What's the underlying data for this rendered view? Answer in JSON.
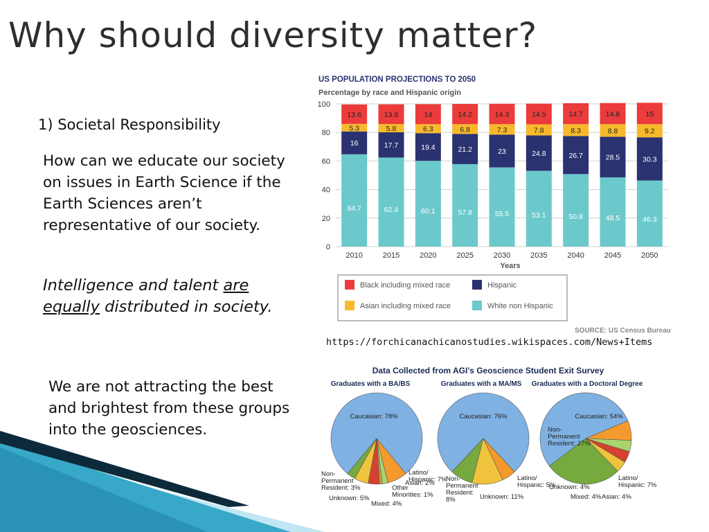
{
  "slide": {
    "title": "Why should diversity matter?",
    "section_heading": "1) Societal Responsibility",
    "question": "How can we educate our society on issues in Earth Science if the Earth Sciences aren’t representative of our society.",
    "emphasis_part1": "Intelligence and talent ",
    "emphasis_underline1": "are",
    "emphasis_underline2": "equally",
    "emphasis_part2": " distributed in society.",
    "attract_text": "We are not attracting the best and brightest from these groups into the geosciences.",
    "source_url": "https://forchicanachicanostudies.wikispaces.com/News+Items"
  },
  "chart_data": [
    {
      "type": "bar",
      "stacked": true,
      "title": "US POPULATION PROJECTIONS TO 2050",
      "subtitle": "Percentage by race and Hispanic origin",
      "xlabel": "Years",
      "ylabel": "",
      "ylim": [
        0,
        100
      ],
      "yticks": [
        0,
        20,
        40,
        60,
        80,
        100
      ],
      "grid": true,
      "categories": [
        "2010",
        "2015",
        "2020",
        "2025",
        "2030",
        "2035",
        "2040",
        "2045",
        "2050"
      ],
      "series": [
        {
          "name": "White non Hispanic",
          "color": "#6cc9cb",
          "values": [
            64.7,
            62.4,
            60.1,
            57.8,
            55.5,
            53.1,
            50.8,
            48.5,
            46.3
          ]
        },
        {
          "name": "Hispanic",
          "color": "#2b3270",
          "values": [
            16.0,
            17.7,
            19.4,
            21.2,
            23.0,
            24.8,
            26.7,
            28.5,
            30.3
          ]
        },
        {
          "name": "Asian including mixed race",
          "color": "#f7b92b",
          "values": [
            5.3,
            5.8,
            6.3,
            6.8,
            7.3,
            7.8,
            8.3,
            8.8,
            9.2
          ]
        },
        {
          "name": "Black including mixed race",
          "color": "#ec3b3b",
          "values": [
            13.6,
            13.8,
            14,
            14.2,
            14.3,
            14.5,
            14.7,
            14.8,
            15
          ]
        }
      ],
      "legend_order": [
        "Black including mixed race",
        "Hispanic",
        "Asian including mixed race",
        "White non Hispanic"
      ],
      "legend_position": "bottom",
      "source": "SOURCE: US Census Bureau"
    },
    {
      "type": "pie",
      "title": "Data Collected from AGI’s Geoscience Student Exit Survey",
      "pies": [
        {
          "title": "Graduates with a BA/BS",
          "slices": [
            {
              "name": "Caucasian",
              "value": 78,
              "color": "#7fb2e3",
              "label": "Caucasian: 78%"
            },
            {
              "name": "Latino/Hispanic",
              "value": 7,
              "color": "#f49a2c",
              "label": "Latino/ Hispanic: 7%"
            },
            {
              "name": "Asian",
              "value": 2,
              "color": "#a9d46f",
              "label": "Asian: 2%"
            },
            {
              "name": "Other Minorities",
              "value": 1,
              "color": "#c8a04a",
              "label": "Other Minorities: 1%"
            },
            {
              "name": "Mixed",
              "value": 4,
              "color": "#d6412f",
              "label": "Mixed: 4%"
            },
            {
              "name": "Unknown",
              "value": 5,
              "color": "#f0c33c",
              "label": "Unknown: 5%"
            },
            {
              "name": "Non-Permanent Resident",
              "value": 3,
              "color": "#76a93e",
              "label": "Non-Permanent Resident: 3%"
            }
          ]
        },
        {
          "title": "Graduates with a MA/MS",
          "slices": [
            {
              "name": "Caucasian",
              "value": 76,
              "color": "#7fb2e3",
              "label": "Caucasian: 76%"
            },
            {
              "name": "Latino/Hispanic",
              "value": 5,
              "color": "#f49a2c",
              "label": "Latino/ Hispanic: 5%"
            },
            {
              "name": "Unknown",
              "value": 11,
              "color": "#f0c33c",
              "label": "Unknown: 11%"
            },
            {
              "name": "Non-Permanent Resident",
              "value": 8,
              "color": "#76a93e",
              "label": "Non-Permanent Resident: 8%"
            }
          ]
        },
        {
          "title": "Graduates with a Doctoral Degree",
          "slices": [
            {
              "name": "Caucasian",
              "value": 54,
              "color": "#7fb2e3",
              "label": "Caucasian: 54%"
            },
            {
              "name": "Latino/Hispanic",
              "value": 7,
              "color": "#f49a2c",
              "label": "Latino/ Hispanic: 7%"
            },
            {
              "name": "Asian",
              "value": 4,
              "color": "#a9d46f",
              "label": "Asian: 4%"
            },
            {
              "name": "Mixed",
              "value": 4,
              "color": "#d6412f",
              "label": "Mixed: 4%"
            },
            {
              "name": "Unknown",
              "value": 4,
              "color": "#f0c33c",
              "label": "Unknown: 4%"
            },
            {
              "name": "Non-Permanent Resident",
              "value": 27,
              "color": "#76a93e",
              "label": "Non-Permanent Resident: 27%"
            }
          ]
        }
      ]
    }
  ],
  "theme": {
    "decor_dark": "#0d2a3a",
    "decor_teal": "#38a8c9",
    "decor_light": "#bfe6f2"
  }
}
